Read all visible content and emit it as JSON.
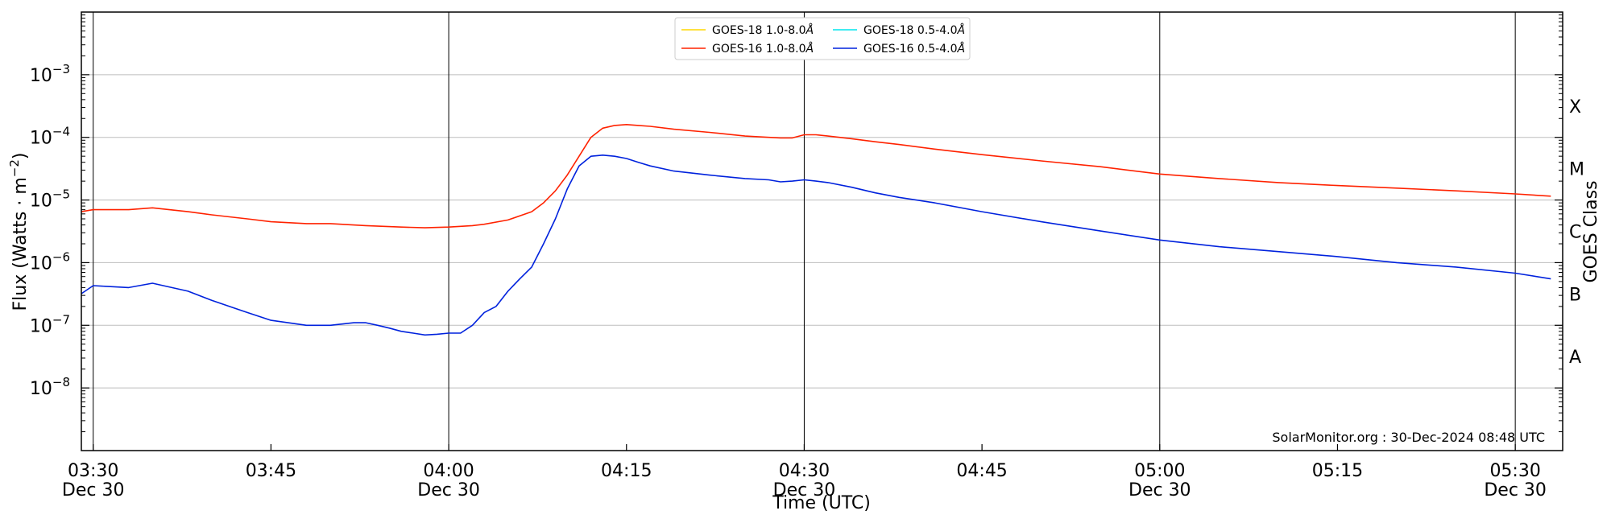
{
  "chart_data": {
    "type": "line",
    "xlabel": "Time (UTC)",
    "ylabel": "Flux (Watts · m",
    "ylabel_sup": "−2",
    "ylabel_close": ")",
    "y2label": "GOES Class",
    "yscale": "log",
    "ylim": [
      1e-09,
      0.01
    ],
    "xlim_minutes": [
      -1,
      124
    ],
    "x_ticks": [
      {
        "minute": 0,
        "line1": "03:30",
        "line2": "Dec 30",
        "vline": true
      },
      {
        "minute": 15,
        "line1": "03:45",
        "line2": "",
        "vline": false
      },
      {
        "minute": 30,
        "line1": "04:00",
        "line2": "Dec 30",
        "vline": true
      },
      {
        "minute": 45,
        "line1": "04:15",
        "line2": "",
        "vline": false
      },
      {
        "minute": 60,
        "line1": "04:30",
        "line2": "Dec 30",
        "vline": true
      },
      {
        "minute": 75,
        "line1": "04:45",
        "line2": "",
        "vline": false
      },
      {
        "minute": 90,
        "line1": "05:00",
        "line2": "Dec 30",
        "vline": true
      },
      {
        "minute": 105,
        "line1": "05:15",
        "line2": "",
        "vline": false
      },
      {
        "minute": 120,
        "line1": "05:30",
        "line2": "Dec 30",
        "vline": true
      }
    ],
    "y_ticks": [
      {
        "exp": -8,
        "label": "10",
        "sup": "−8"
      },
      {
        "exp": -7,
        "label": "10",
        "sup": "−7"
      },
      {
        "exp": -6,
        "label": "10",
        "sup": "−6"
      },
      {
        "exp": -5,
        "label": "10",
        "sup": "−5"
      },
      {
        "exp": -4,
        "label": "10",
        "sup": "−4"
      },
      {
        "exp": -3,
        "label": "10",
        "sup": "−3"
      }
    ],
    "goes_classes": [
      {
        "label": "A",
        "exp": -7.5
      },
      {
        "label": "B",
        "exp": -6.5
      },
      {
        "label": "C",
        "exp": -5.5
      },
      {
        "label": "M",
        "exp": -4.5
      },
      {
        "label": "X",
        "exp": -3.5
      }
    ],
    "grid": "horizontal at decades",
    "legend_position": "top-center",
    "credit": "SolarMonitor.org : 30-Dec-2024 08:48 UTC",
    "series": [
      {
        "name": "GOES-18 1.0-8.0",
        "unit": "Å",
        "color": "#ffd700",
        "x": [],
        "y": []
      },
      {
        "name": "GOES-18 0.5-4.0",
        "unit": "Å",
        "color": "#00e5ee",
        "x": [],
        "y": []
      },
      {
        "name": "GOES-16 1.0-8.0",
        "unit": "Å",
        "color": "#ff2200",
        "x": [
          -1,
          0,
          3,
          5,
          8,
          10,
          13,
          15,
          18,
          20,
          23,
          26,
          28,
          30,
          32,
          33,
          35,
          37,
          38,
          39,
          40,
          41,
          42,
          43,
          44,
          45,
          46,
          47,
          49,
          52,
          55,
          57,
          58,
          59,
          60,
          61,
          62,
          64,
          66,
          68,
          71,
          75,
          80,
          85,
          90,
          95,
          100,
          105,
          110,
          115,
          120,
          123
        ],
        "y": [
          6.5e-06,
          7e-06,
          7e-06,
          7.5e-06,
          6.5e-06,
          5.8e-06,
          5e-06,
          4.5e-06,
          4.2e-06,
          4.2e-06,
          3.9e-06,
          3.7e-06,
          3.6e-06,
          3.7e-06,
          3.9e-06,
          4.1e-06,
          4.8e-06,
          6.5e-06,
          9e-06,
          1.4e-05,
          2.5e-05,
          5e-05,
          0.0001,
          0.00014,
          0.000155,
          0.00016,
          0.000155,
          0.00015,
          0.000135,
          0.00012,
          0.000105,
          0.0001,
          9.8e-05,
          9.8e-05,
          0.00011,
          0.00011,
          0.000105,
          9.5e-05,
          8.5e-05,
          7.7e-05,
          6.5e-05,
          5.3e-05,
          4.2e-05,
          3.4e-05,
          2.6e-05,
          2.2e-05,
          1.9e-05,
          1.7e-05,
          1.55e-05,
          1.4e-05,
          1.25e-05,
          1.15e-05
        ]
      },
      {
        "name": "GOES-16 0.5-4.0",
        "unit": "Å",
        "color": "#0022dd",
        "x": [
          -1,
          0,
          1,
          3,
          5,
          8,
          10,
          13,
          15,
          18,
          20,
          22,
          23,
          24,
          25,
          26,
          27,
          28,
          29,
          30,
          31,
          32,
          33,
          34,
          35,
          36,
          37,
          38,
          39,
          40,
          41,
          42,
          43,
          44,
          45,
          46,
          47,
          49,
          52,
          55,
          57,
          58,
          59,
          60,
          61,
          62,
          64,
          66,
          68,
          71,
          75,
          80,
          85,
          90,
          95,
          100,
          105,
          110,
          115,
          120,
          123
        ],
        "y": [
          3.2e-07,
          4.3e-07,
          4.2e-07,
          4e-07,
          4.7e-07,
          3.5e-07,
          2.5e-07,
          1.6e-07,
          1.2e-07,
          1e-07,
          1e-07,
          1.1e-07,
          1.1e-07,
          1e-07,
          9e-08,
          8e-08,
          7.5e-08,
          7e-08,
          7.2e-08,
          7.5e-08,
          7.5e-08,
          1e-07,
          1.6e-07,
          2e-07,
          3.5e-07,
          5.5e-07,
          8.5e-07,
          2e-06,
          5e-06,
          1.5e-05,
          3.5e-05,
          5e-05,
          5.2e-05,
          5e-05,
          4.6e-05,
          4e-05,
          3.5e-05,
          2.9e-05,
          2.5e-05,
          2.2e-05,
          2.1e-05,
          1.95e-05,
          2e-05,
          2.1e-05,
          2e-05,
          1.9e-05,
          1.6e-05,
          1.3e-05,
          1.1e-05,
          9e-06,
          6.5e-06,
          4.5e-06,
          3.2e-06,
          2.3e-06,
          1.8e-06,
          1.5e-06,
          1.25e-06,
          1e-06,
          8.5e-07,
          6.8e-07,
          5.5e-07
        ]
      }
    ]
  }
}
